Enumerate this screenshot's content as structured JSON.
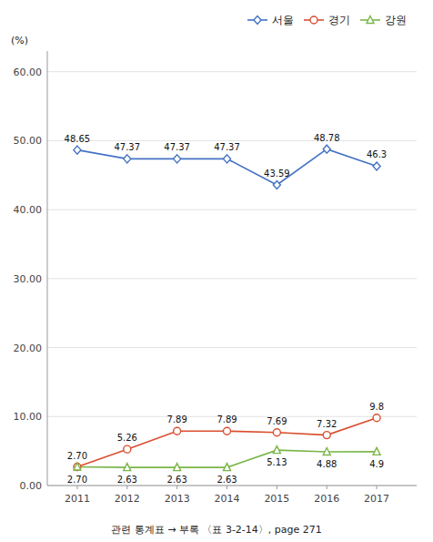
{
  "chart_data": {
    "type": "line",
    "y_label": "(%)",
    "footer": "관련 통계표 → 부록 〈표 3-2-14〉, page 271",
    "x": [
      2011,
      2012,
      2013,
      2014,
      2015,
      2016,
      2017
    ],
    "xlim": [
      2010.4,
      2017.8
    ],
    "xticks": [
      2011,
      2012,
      2013,
      2014,
      2015,
      2016,
      2017
    ],
    "ylim": [
      0,
      63
    ],
    "yticks": [
      {
        "value": 0,
        "label": "0.00"
      },
      {
        "value": 10,
        "label": "10.00"
      },
      {
        "value": 20,
        "label": "20.00"
      },
      {
        "value": 30,
        "label": "30.00"
      },
      {
        "value": 40,
        "label": "40.00"
      },
      {
        "value": 50,
        "label": "50.00"
      },
      {
        "value": 60,
        "label": "60.00"
      }
    ],
    "grid": true,
    "legend": "top-right",
    "data_labels": true,
    "series": [
      {
        "name": "서울",
        "color": "#4472C4",
        "marker": "diamond",
        "values": [
          48.65,
          47.37,
          47.37,
          47.37,
          43.59,
          48.78,
          46.3
        ],
        "value_labels": [
          "48.65",
          "47.37",
          "47.37",
          "47.37",
          "43.59",
          "48.78",
          "46.3"
        ]
      },
      {
        "name": "경기",
        "color": "#D94E2F",
        "marker": "circle",
        "values": [
          2.7,
          5.26,
          7.89,
          7.89,
          7.69,
          7.32,
          9.8
        ],
        "value_labels": [
          "2.70",
          "5.26",
          "7.89",
          "7.89",
          "7.69",
          "7.32",
          "9.8"
        ]
      },
      {
        "name": "강원",
        "color": "#7AB648",
        "marker": "triangle",
        "values": [
          2.7,
          2.63,
          2.63,
          2.63,
          5.13,
          4.88,
          4.9
        ],
        "value_labels": [
          "2.70",
          "2.63",
          "2.63",
          "2.63",
          "5.13",
          "4.88",
          "4.9"
        ]
      }
    ]
  }
}
